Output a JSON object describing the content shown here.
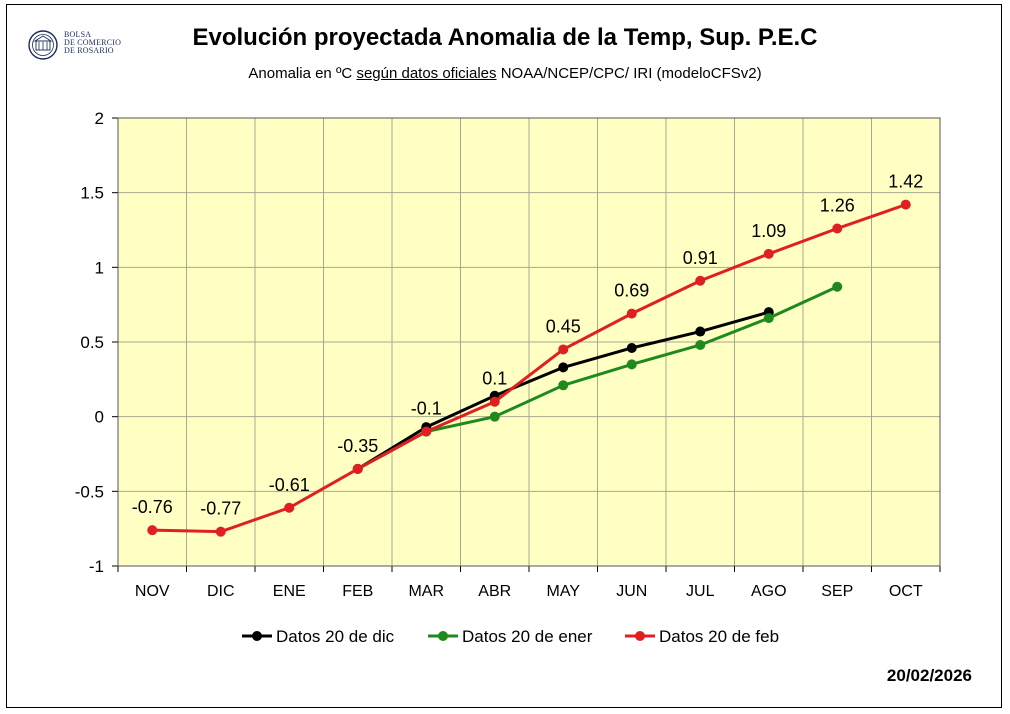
{
  "header": {
    "title": "Evolución proyectada Anomalia de la Temp, Sup.  P.E.C",
    "subtitle_pre": "Anomalia en ºC ",
    "subtitle_underlined": "según datos oficiales",
    "subtitle_post": " NOAA/NCEP/CPC/ IRI (modeloCFSv2)",
    "logo_lines": [
      "BOLSA",
      "DE COMERCIO",
      "DE ROSARIO"
    ],
    "date": "20/02/2026"
  },
  "colors": {
    "plot_bg": "#FFFFC4",
    "grid": "#A8A890",
    "dic": "#000000",
    "ener": "#1E8A1E",
    "feb": "#E02020"
  },
  "chart_data": {
    "type": "line",
    "categories": [
      "NOV",
      "DIC",
      "ENE",
      "FEB",
      "MAR",
      "ABR",
      "MAY",
      "JUN",
      "JUL",
      "AGO",
      "SEP",
      "OCT"
    ],
    "ylim": [
      -1,
      2
    ],
    "yticks": [
      "2",
      "1.5",
      "1",
      "0.5",
      "0",
      "-0.5",
      "-1"
    ],
    "grid": true,
    "legend_position": "bottom",
    "series": [
      {
        "name": "Datos 20 de dic",
        "color_key": "dic",
        "values": [
          null,
          null,
          null,
          -0.35,
          -0.07,
          0.14,
          0.33,
          0.46,
          0.57,
          0.7,
          null,
          null
        ]
      },
      {
        "name": "Datos 20 de ener",
        "color_key": "ener",
        "values": [
          null,
          null,
          null,
          -0.35,
          -0.1,
          0.0,
          0.21,
          0.35,
          0.48,
          0.66,
          0.87,
          null
        ]
      },
      {
        "name": "Datos 20 de feb",
        "color_key": "feb",
        "values": [
          -0.76,
          -0.77,
          -0.61,
          -0.35,
          -0.1,
          0.1,
          0.45,
          0.69,
          0.91,
          1.09,
          1.26,
          1.42
        ],
        "labels": [
          "-0.76",
          "-0.77",
          "-0.61",
          "-0.35",
          "-0.1",
          "0.1",
          "0.45",
          "0.69",
          "0.91",
          "1.09",
          "1.26",
          "1.42"
        ]
      }
    ]
  }
}
